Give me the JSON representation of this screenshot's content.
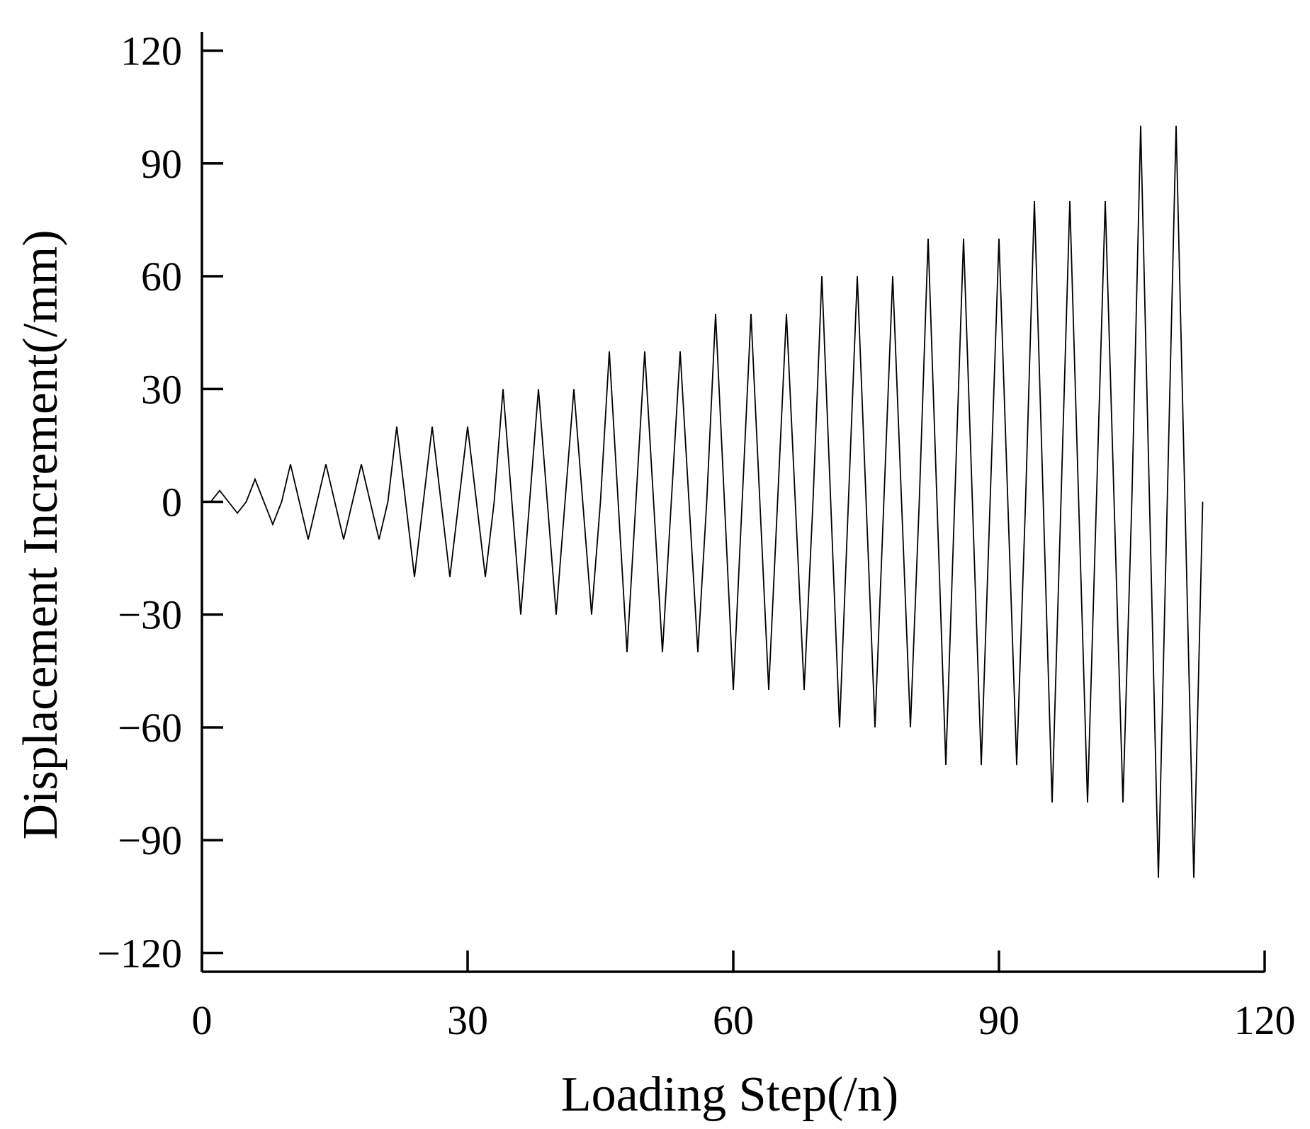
{
  "chart_data": {
    "type": "line",
    "xlabel": "Loading Step(/n)",
    "ylabel": "Displacement Increment(/mm)",
    "xlim": [
      0,
      120
    ],
    "ylim": [
      -125,
      125
    ],
    "xticks": [
      0,
      30,
      60,
      90,
      120
    ],
    "yticks": [
      120,
      90,
      60,
      30,
      0,
      -30,
      -60,
      -90,
      -120
    ],
    "xtick_labels": [
      "0",
      "30",
      "60",
      "90",
      "120"
    ],
    "ytick_labels": [
      "120",
      "90",
      "60",
      "30",
      "0",
      "−30",
      "−60",
      "−90",
      "−120"
    ],
    "grid": false,
    "series": [
      {
        "x": [
          0,
          1,
          2,
          3,
          4,
          5,
          6,
          7,
          8,
          9,
          10,
          11,
          12,
          13,
          14,
          15,
          16,
          17,
          18,
          19,
          20,
          21,
          22,
          23,
          24,
          25,
          26,
          27,
          28,
          29,
          30,
          31,
          32,
          33,
          34,
          35,
          36,
          37,
          38,
          39,
          40,
          41,
          42,
          43,
          44,
          45,
          46,
          47,
          48,
          49,
          50,
          51,
          52,
          53,
          54,
          55,
          56,
          57,
          58,
          59,
          60,
          61,
          62,
          63,
          64,
          65,
          66,
          67,
          68,
          69,
          70,
          71,
          72,
          73,
          74,
          75,
          76,
          77,
          78,
          79,
          80,
          81,
          82,
          83,
          84,
          85,
          86,
          87,
          88,
          89,
          90,
          91,
          92,
          93,
          94,
          95,
          96,
          97,
          98,
          99,
          100,
          101,
          102,
          103,
          104,
          105,
          106,
          107,
          108,
          109,
          110,
          111,
          112,
          113
        ],
        "y": [
          0,
          0,
          3,
          0,
          -3,
          0,
          6,
          0,
          -6,
          0,
          10,
          0,
          -10,
          0,
          10,
          0,
          -10,
          0,
          10,
          0,
          -10,
          0,
          20,
          0,
          -20,
          0,
          20,
          0,
          -20,
          0,
          20,
          0,
          -20,
          0,
          30,
          0,
          -30,
          0,
          30,
          0,
          -30,
          0,
          30,
          0,
          -30,
          0,
          40,
          0,
          -40,
          0,
          40,
          0,
          -40,
          0,
          40,
          0,
          -40,
          0,
          50,
          0,
          -50,
          0,
          50,
          0,
          -50,
          0,
          50,
          0,
          -50,
          0,
          60,
          0,
          -60,
          0,
          60,
          0,
          -60,
          0,
          60,
          0,
          -60,
          0,
          70,
          0,
          -70,
          0,
          70,
          0,
          -70,
          0,
          70,
          0,
          -70,
          0,
          80,
          0,
          -80,
          0,
          80,
          0,
          -80,
          0,
          80,
          0,
          -80,
          0,
          100,
          0,
          -100,
          0,
          100,
          0,
          -100,
          0
        ]
      }
    ]
  }
}
